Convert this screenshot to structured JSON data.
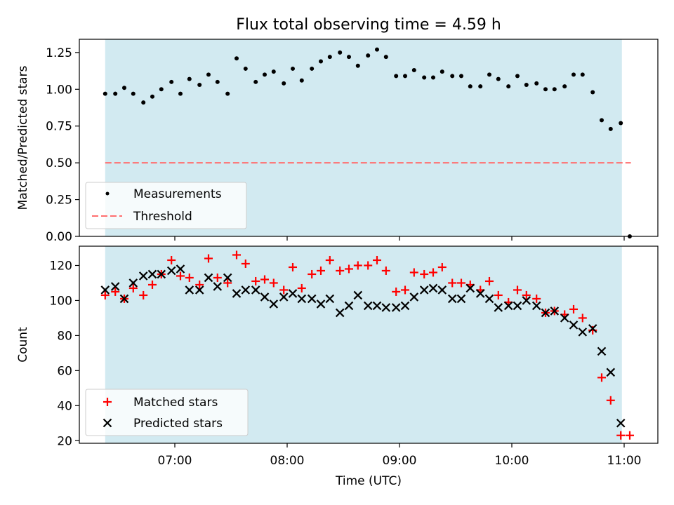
{
  "title": "Flux total observing time = 4.59 h",
  "xlabel": "Time (UTC)",
  "xticks": [
    "07:00",
    "08:00",
    "09:00",
    "10:00",
    "11:00"
  ],
  "colors": {
    "shade": "#add8e6",
    "measurements": "#000000",
    "threshold": "#ff6f6f",
    "matched": "#ff0000",
    "predicted": "#000000"
  },
  "chart_data": [
    {
      "type": "scatter",
      "ylabel": "Matched/Predicted stars",
      "ylim": [
        0,
        1.34
      ],
      "yticks": [
        "0.00",
        "0.25",
        "0.50",
        "0.75",
        "1.00",
        "1.25"
      ],
      "ytick_values": [
        0,
        0.25,
        0.5,
        0.75,
        1.0,
        1.25
      ],
      "xlim_hours": [
        6.15,
        11.3
      ],
      "shaded_span_hours": [
        6.38,
        10.98
      ],
      "legend_position": "lower-left",
      "legend": [
        "Measurements",
        "Threshold"
      ],
      "threshold": {
        "name": "Threshold",
        "y": 0.5,
        "x_hours": [
          6.38,
          11.06
        ]
      },
      "series": [
        {
          "name": "Measurements",
          "x_hours": [
            6.38,
            6.47,
            6.55,
            6.63,
            6.72,
            6.8,
            6.88,
            6.97,
            7.05,
            7.13,
            7.22,
            7.3,
            7.38,
            7.47,
            7.55,
            7.63,
            7.72,
            7.8,
            7.88,
            7.97,
            8.05,
            8.13,
            8.22,
            8.3,
            8.38,
            8.47,
            8.55,
            8.63,
            8.72,
            8.8,
            8.88,
            8.97,
            9.05,
            9.13,
            9.22,
            9.3,
            9.38,
            9.47,
            9.55,
            9.63,
            9.72,
            9.8,
            9.88,
            9.97,
            10.05,
            10.13,
            10.22,
            10.3,
            10.38,
            10.47,
            10.55,
            10.63,
            10.72,
            10.8,
            10.88,
            10.97,
            11.05
          ],
          "values": [
            0.97,
            0.97,
            1.01,
            0.97,
            0.91,
            0.95,
            1.0,
            1.05,
            0.97,
            1.07,
            1.03,
            1.1,
            1.05,
            0.97,
            1.21,
            1.14,
            1.05,
            1.1,
            1.12,
            1.04,
            1.14,
            1.06,
            1.14,
            1.19,
            1.22,
            1.25,
            1.22,
            1.16,
            1.23,
            1.27,
            1.22,
            1.09,
            1.09,
            1.13,
            1.08,
            1.08,
            1.12,
            1.09,
            1.09,
            1.02,
            1.02,
            1.1,
            1.07,
            1.02,
            1.09,
            1.03,
            1.04,
            1.0,
            1.0,
            1.02,
            1.1,
            1.1,
            0.98,
            0.79,
            0.73,
            0.77,
            0.0
          ]
        }
      ]
    },
    {
      "type": "scatter",
      "ylabel": "Count",
      "ylim": [
        18.5,
        131
      ],
      "yticks": [
        "20",
        "40",
        "60",
        "80",
        "100",
        "120"
      ],
      "ytick_values": [
        20,
        40,
        60,
        80,
        100,
        120
      ],
      "xlim_hours": [
        6.15,
        11.3
      ],
      "shaded_span_hours": [
        6.38,
        10.98
      ],
      "legend_position": "lower-left",
      "legend": [
        "Matched stars",
        "Predicted stars"
      ],
      "series": [
        {
          "name": "Matched stars",
          "marker": "+",
          "x_hours": [
            6.38,
            6.47,
            6.55,
            6.63,
            6.72,
            6.8,
            6.88,
            6.97,
            7.05,
            7.13,
            7.22,
            7.3,
            7.38,
            7.47,
            7.55,
            7.63,
            7.72,
            7.8,
            7.88,
            7.97,
            8.05,
            8.13,
            8.22,
            8.3,
            8.38,
            8.47,
            8.55,
            8.63,
            8.72,
            8.8,
            8.88,
            8.97,
            9.05,
            9.13,
            9.22,
            9.3,
            9.38,
            9.47,
            9.55,
            9.63,
            9.72,
            9.8,
            9.88,
            9.97,
            10.05,
            10.13,
            10.22,
            10.3,
            10.38,
            10.47,
            10.55,
            10.63,
            10.72,
            10.8,
            10.88,
            10.97,
            11.05
          ],
          "values": [
            103,
            105,
            101,
            107,
            103,
            109,
            115,
            123,
            114,
            113,
            109,
            124,
            113,
            110,
            126,
            121,
            111,
            112,
            110,
            106,
            119,
            107,
            115,
            117,
            123,
            117,
            118,
            120,
            120,
            123,
            117,
            105,
            106,
            116,
            115,
            116,
            119,
            110,
            110,
            109,
            106,
            111,
            103,
            99,
            106,
            103,
            101,
            93,
            94,
            92,
            95,
            90,
            83,
            56,
            43,
            23,
            23
          ]
        },
        {
          "name": "Predicted stars",
          "marker": "x",
          "x_hours": [
            6.38,
            6.47,
            6.55,
            6.63,
            6.72,
            6.8,
            6.88,
            6.97,
            7.05,
            7.13,
            7.22,
            7.3,
            7.38,
            7.47,
            7.55,
            7.63,
            7.72,
            7.8,
            7.88,
            7.97,
            8.05,
            8.13,
            8.22,
            8.3,
            8.38,
            8.47,
            8.55,
            8.63,
            8.72,
            8.8,
            8.88,
            8.97,
            9.05,
            9.13,
            9.22,
            9.3,
            9.38,
            9.47,
            9.55,
            9.63,
            9.72,
            9.8,
            9.88,
            9.97,
            10.05,
            10.13,
            10.22,
            10.3,
            10.38,
            10.47,
            10.55,
            10.63,
            10.72,
            10.8,
            10.88,
            10.97
          ],
          "values": [
            106,
            108,
            101,
            110,
            114,
            115,
            115,
            117,
            118,
            106,
            106,
            113,
            108,
            113,
            104,
            106,
            106,
            102,
            98,
            102,
            104,
            101,
            101,
            98,
            101,
            93,
            97,
            103,
            97,
            97,
            96,
            96,
            97,
            102,
            106,
            107,
            106,
            101,
            101,
            107,
            104,
            101,
            96,
            97,
            97,
            100,
            97,
            93,
            94,
            90,
            86,
            82,
            84,
            71,
            59,
            30
          ]
        }
      ]
    }
  ]
}
